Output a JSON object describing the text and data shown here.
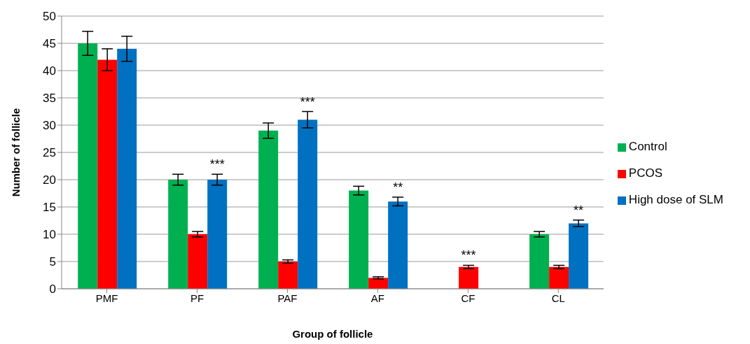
{
  "chart_data": {
    "type": "bar",
    "xlabel": "Group of follicle",
    "ylabel": "Number of follicle",
    "categories": [
      "PMF",
      "PF",
      "PAF",
      "AF",
      "CF",
      "CL"
    ],
    "series": [
      {
        "name": "Control",
        "color": "#00b050",
        "values": [
          45,
          20,
          29,
          18,
          null,
          10
        ],
        "errors": [
          2.2,
          1,
          1.4,
          0.8,
          null,
          0.5
        ]
      },
      {
        "name": "PCOS",
        "color": "#ff0000",
        "values": [
          42,
          10,
          5,
          2,
          4,
          4
        ],
        "errors": [
          2,
          0.5,
          0.3,
          0.2,
          0.3,
          0.3
        ],
        "value_labels": [
          null,
          null,
          null,
          null,
          "***",
          null
        ]
      },
      {
        "name": "High dose of SLM",
        "color": "#0070c0",
        "values": [
          44,
          20,
          31,
          16,
          null,
          12
        ],
        "errors": [
          2.3,
          1,
          1.5,
          0.8,
          null,
          0.6
        ],
        "value_labels": [
          null,
          "***",
          "***",
          "**",
          null,
          "**"
        ]
      }
    ],
    "ylim": [
      0,
      50
    ],
    "yticks": [
      0,
      5,
      10,
      15,
      20,
      25,
      30,
      35,
      40,
      45,
      50
    ],
    "grid": "y",
    "legend": "right"
  }
}
